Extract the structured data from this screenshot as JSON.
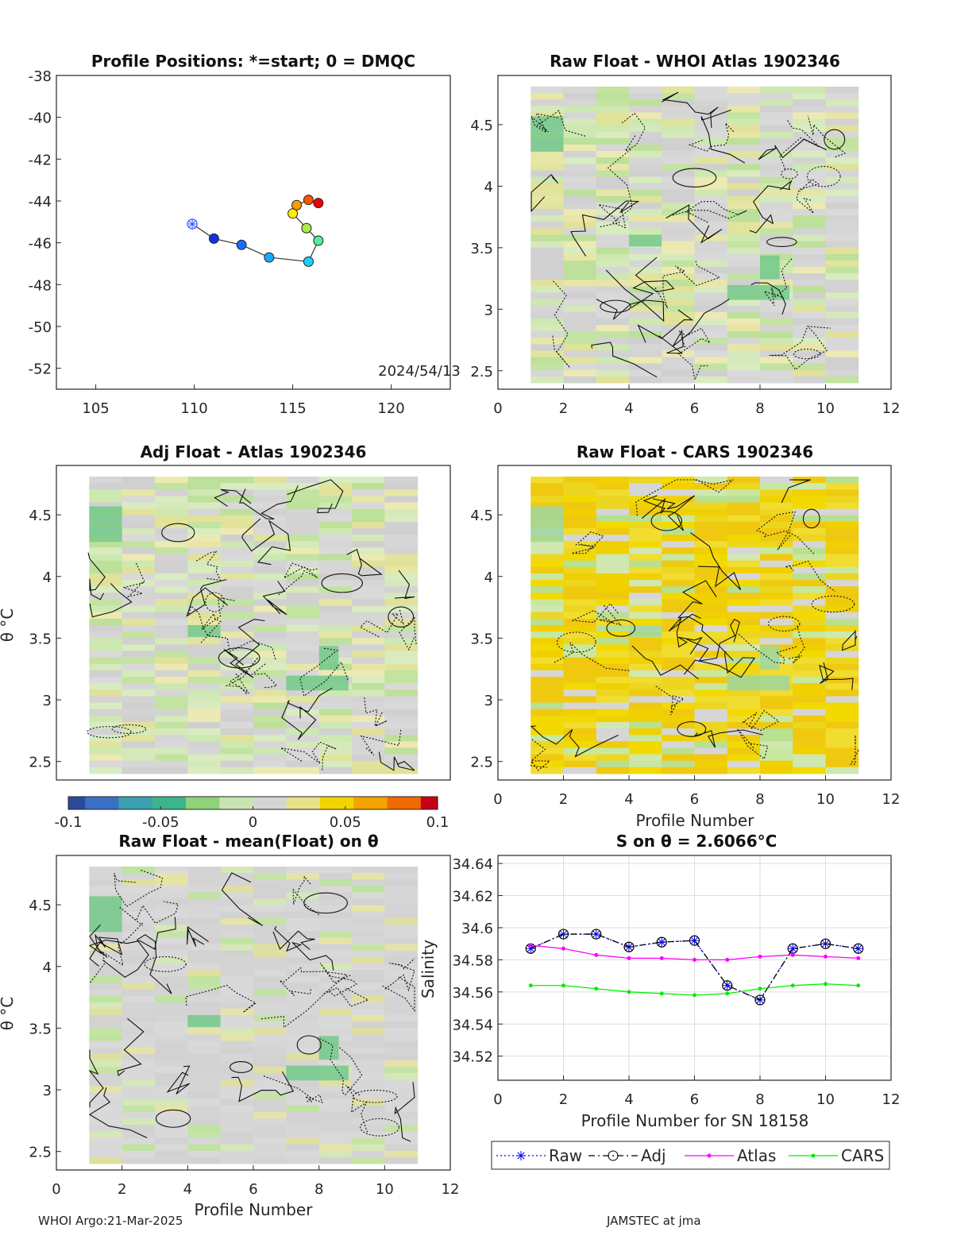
{
  "chart_data": [
    {
      "type": "scatter",
      "title": "Profile Positions: *=start; 0 = DMQC",
      "xlim": [
        103,
        123
      ],
      "ylim": [
        -53,
        -38
      ],
      "xticks": [
        "105",
        "110",
        "115",
        "120"
      ],
      "yticks": [
        "-38",
        "-40",
        "-42",
        "-44",
        "-46",
        "-48",
        "-50",
        "-52"
      ],
      "annotation": "2024/54/13",
      "track": [
        {
          "lon": 109.9,
          "lat": -45.1,
          "color": "#3355ff",
          "marker": "star"
        },
        {
          "lon": 111.0,
          "lat": -45.8,
          "color": "#1133dd"
        },
        {
          "lon": 112.4,
          "lat": -46.1,
          "color": "#1a6aff"
        },
        {
          "lon": 113.8,
          "lat": -46.7,
          "color": "#1aa8ff"
        },
        {
          "lon": 115.8,
          "lat": -46.9,
          "color": "#22ccff"
        },
        {
          "lon": 116.3,
          "lat": -45.9,
          "color": "#55ee99"
        },
        {
          "lon": 115.7,
          "lat": -45.3,
          "color": "#aaee44"
        },
        {
          "lon": 115.0,
          "lat": -44.6,
          "color": "#ffee00"
        },
        {
          "lon": 115.2,
          "lat": -44.2,
          "color": "#ff9900"
        },
        {
          "lon": 115.8,
          "lat": -43.95,
          "color": "#ff5500"
        },
        {
          "lon": 116.3,
          "lat": -44.1,
          "color": "#ee0000"
        }
      ]
    },
    {
      "type": "heatmap",
      "title": "Raw Float - WHOI Atlas  1902346",
      "xlim": [
        0,
        12
      ],
      "ylim": [
        2.35,
        4.9
      ],
      "xticks": [
        "0",
        "2",
        "4",
        "6",
        "8",
        "10",
        "12"
      ],
      "yticks": [
        "2.5",
        "3",
        "3.5",
        "4",
        "4.5"
      ],
      "palette": "atlas"
    },
    {
      "type": "heatmap",
      "title": "Adj Float - Atlas  1902346",
      "ylabel": "θ °C",
      "xlim": [
        0,
        12
      ],
      "ylim": [
        2.35,
        4.9
      ],
      "xticks": [],
      "yticks": [
        "2.5",
        "3",
        "3.5",
        "4",
        "4.5"
      ],
      "palette": "atlas"
    },
    {
      "type": "heatmap",
      "title": "Raw Float - CARS  1902346",
      "xlabel": "Profile Number",
      "xlim": [
        0,
        12
      ],
      "ylim": [
        2.35,
        4.9
      ],
      "xticks": [
        "0",
        "2",
        "4",
        "6",
        "8",
        "10",
        "12"
      ],
      "yticks": [
        "2.5",
        "3",
        "3.5",
        "4",
        "4.5"
      ],
      "palette": "cars"
    },
    {
      "type": "colorbar",
      "range": [
        -0.1,
        0.1
      ],
      "ticks": [
        "-0.1",
        "-0.05",
        "0",
        "0.05",
        "0.1"
      ]
    },
    {
      "type": "heatmap",
      "title": "Raw Float - mean(Float) on θ",
      "ylabel": "θ °C",
      "xlabel": "Profile Number",
      "xlim": [
        0,
        12
      ],
      "ylim": [
        2.35,
        4.9
      ],
      "xticks": [
        "0",
        "2",
        "4",
        "6",
        "8",
        "10",
        "12"
      ],
      "yticks": [
        "2.5",
        "3",
        "3.5",
        "4",
        "4.5"
      ],
      "palette": "mean"
    },
    {
      "type": "line",
      "title": "S on θ = 2.6066°C",
      "xlabel": "Profile Number for SN 18158",
      "ylabel": "Salinity",
      "xlim": [
        0,
        12
      ],
      "ylim": [
        34.505,
        34.645
      ],
      "xticks": [
        "0",
        "2",
        "4",
        "6",
        "8",
        "10",
        "12"
      ],
      "yticks": [
        "34.52",
        "34.54",
        "34.56",
        "34.58",
        "34.6",
        "34.62",
        "34.64"
      ],
      "x": [
        1,
        2,
        3,
        4,
        5,
        6,
        7,
        8,
        9,
        10,
        11
      ],
      "series": [
        {
          "name": "Raw",
          "values": [
            34.587,
            34.596,
            34.596,
            34.588,
            34.591,
            34.592,
            34.564,
            34.555,
            34.587,
            34.59,
            34.587
          ],
          "color": "#0000ff",
          "style": "dotted",
          "marker": "star"
        },
        {
          "name": "Adj",
          "values": [
            34.587,
            34.596,
            34.596,
            34.588,
            34.591,
            34.592,
            34.564,
            34.555,
            34.587,
            34.59,
            34.587
          ],
          "color": "#000000",
          "style": "dashdot",
          "marker": "circle"
        },
        {
          "name": "Atlas",
          "values": [
            34.589,
            34.587,
            34.583,
            34.581,
            34.581,
            34.58,
            34.58,
            34.582,
            34.583,
            34.582,
            34.581
          ],
          "color": "#ff00ff",
          "style": "solid",
          "marker": "dot"
        },
        {
          "name": "CARS",
          "values": [
            34.564,
            34.564,
            34.562,
            34.56,
            34.559,
            34.558,
            34.559,
            34.562,
            34.564,
            34.565,
            34.564
          ],
          "color": "#00ee00",
          "style": "solid",
          "marker": "dot"
        }
      ]
    }
  ],
  "footer": {
    "left": "WHOI Argo:21-Mar-2025",
    "right": "JAMSTEC at jma"
  }
}
